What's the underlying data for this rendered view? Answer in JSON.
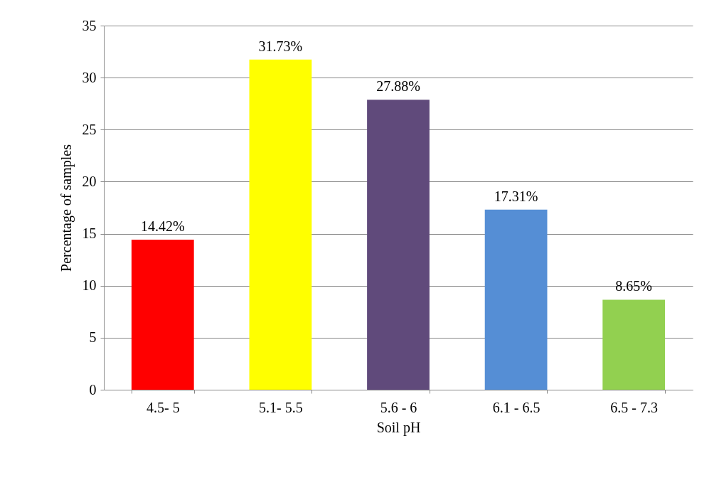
{
  "chart_data": {
    "type": "bar",
    "xlabel": "Soil pH",
    "ylabel": "Percentage of samples",
    "categories": [
      "4.5- 5",
      "5.1- 5.5",
      "5.6 - 6",
      "6.1 - 6.5",
      "6.5 - 7.3"
    ],
    "values": [
      14.42,
      31.73,
      27.88,
      17.31,
      8.65
    ],
    "colors": [
      "#ff0000",
      "#ffff00",
      "#604a7b",
      "#558ed5",
      "#92d050"
    ],
    "value_labels": [
      "14.42%",
      "31.73%",
      "27.88%",
      "17.31%",
      "8.65%"
    ],
    "ylim": [
      0,
      35
    ],
    "yticks": [
      0,
      5,
      10,
      15,
      20,
      25,
      30,
      35
    ],
    "grid": "y"
  }
}
